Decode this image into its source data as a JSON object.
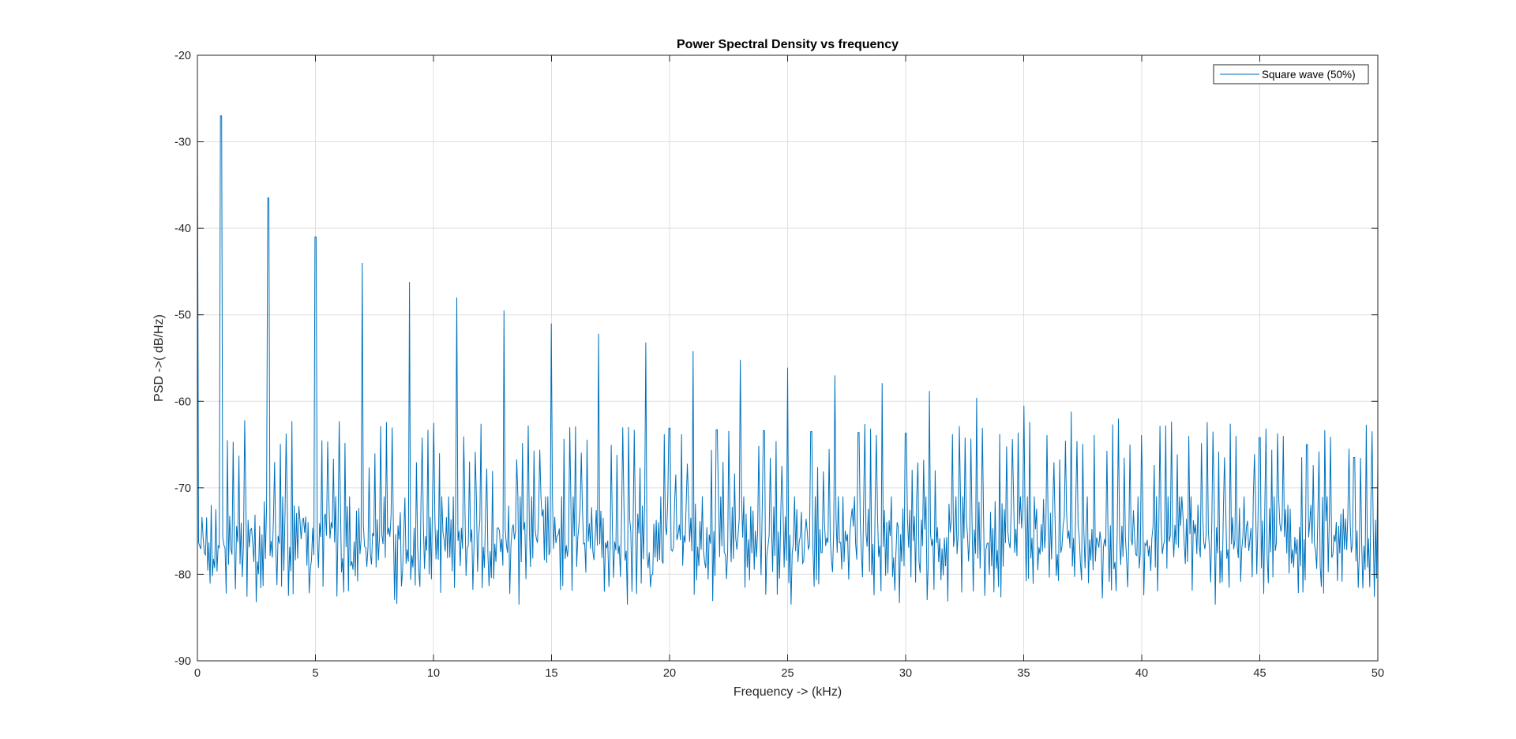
{
  "chart_data": {
    "type": "line",
    "title": "Power Spectral Density vs frequency",
    "xlabel": "Frequency -> (kHz)",
    "ylabel": "PSD ->( dB/Hz)",
    "xlim": [
      0,
      50
    ],
    "ylim": [
      -90,
      -20
    ],
    "xticks": [
      0,
      5,
      10,
      15,
      20,
      25,
      30,
      35,
      40,
      45,
      50
    ],
    "yticks": [
      -90,
      -80,
      -70,
      -60,
      -50,
      -40,
      -30,
      -20
    ],
    "grid": true,
    "legend_position": "top-right",
    "series": [
      {
        "name": "Square wave (50%)",
        "color": "#0072BD",
        "harmonic_peaks": {
          "x": [
            0,
            1,
            3,
            5,
            7,
            9,
            11,
            13,
            15,
            17,
            19,
            21,
            23,
            25,
            27,
            29,
            31,
            33,
            35,
            37,
            39,
            41,
            43,
            45,
            47,
            49
          ],
          "y": [
            -26,
            -27,
            -36.5,
            -41,
            -44,
            -46.2,
            -48,
            -49.5,
            -51,
            -52.2,
            -53.2,
            -54.2,
            -55.2,
            -56.1,
            -57,
            -57.9,
            -58.8,
            -59.6,
            -60.5,
            -61.2,
            -62,
            -62.8,
            -63.5,
            -64.2,
            -65,
            -66.5
          ]
        },
        "secondary_peaks": {
          "x": [
            2,
            4,
            6,
            8,
            10,
            12,
            14,
            16,
            18,
            20,
            22,
            24,
            26,
            28,
            30,
            32,
            34,
            36,
            38,
            40,
            42,
            44,
            46,
            48,
            50
          ],
          "y": [
            -62.2,
            -62.3,
            -62.3,
            -62.4,
            -62.5,
            -62.6,
            -62.8,
            -62.9,
            -63,
            -63.1,
            -63.3,
            -63.4,
            -63.5,
            -63.6,
            -63.7,
            -63.8,
            -63.8,
            -63.9,
            -63.9,
            -63.9,
            -64,
            -64,
            -64,
            -64.1,
            -67
          ]
        },
        "noise_floor_range": [
          -83.5,
          -70
        ],
        "sample_count": 1025
      }
    ]
  }
}
